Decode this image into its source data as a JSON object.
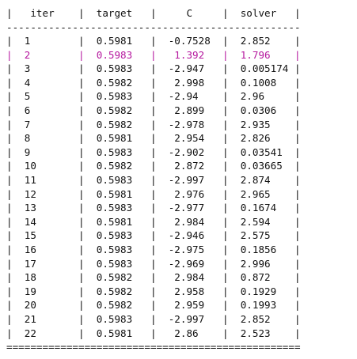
{
  "table": {
    "header": "|   iter    |  target   |     C     |  solver   |",
    "top_rule": "-------------------------------------------------",
    "bottom_rule": "=================================================",
    "highlight_color": "#b5179e",
    "rows": [
      {
        "text": "|  1        |  0.5981   |  -0.7528  |  2.852    |",
        "highlight": false
      },
      {
        "text": "|  2        |  0.5983   |   1.392   |  1.796    |",
        "highlight": true
      },
      {
        "text": "|  3        |  0.5983   |  -2.947   |  0.005174 |",
        "highlight": false
      },
      {
        "text": "|  4        |  0.5982   |   2.998   |  0.1008   |",
        "highlight": false
      },
      {
        "text": "|  5        |  0.5983   |  -2.94    |  2.96     |",
        "highlight": false
      },
      {
        "text": "|  6        |  0.5982   |   2.899   |  0.0306   |",
        "highlight": false
      },
      {
        "text": "|  7        |  0.5982   |  -2.978   |  2.935    |",
        "highlight": false
      },
      {
        "text": "|  8        |  0.5981   |   2.954   |  2.826    |",
        "highlight": false
      },
      {
        "text": "|  9        |  0.5983   |  -2.902   |  0.03541  |",
        "highlight": false
      },
      {
        "text": "|  10       |  0.5982   |   2.872   |  0.03665  |",
        "highlight": false
      },
      {
        "text": "|  11       |  0.5983   |  -2.997   |  2.874    |",
        "highlight": false
      },
      {
        "text": "|  12       |  0.5981   |   2.976   |  2.965    |",
        "highlight": false
      },
      {
        "text": "|  13       |  0.5983   |  -2.977   |  0.1674   |",
        "highlight": false
      },
      {
        "text": "|  14       |  0.5981   |   2.984   |  2.594    |",
        "highlight": false
      },
      {
        "text": "|  15       |  0.5983   |  -2.946   |  2.575    |",
        "highlight": false
      },
      {
        "text": "|  16       |  0.5983   |  -2.975   |  0.1856   |",
        "highlight": false
      },
      {
        "text": "|  17       |  0.5983   |  -2.969   |  2.996    |",
        "highlight": false
      },
      {
        "text": "|  18       |  0.5982   |   2.984   |  0.872    |",
        "highlight": false
      },
      {
        "text": "|  19       |  0.5982   |   2.958   |  0.1929   |",
        "highlight": false
      },
      {
        "text": "|  20       |  0.5982   |   2.959   |  0.1993   |",
        "highlight": false
      },
      {
        "text": "|  21       |  0.5983   |  -2.997   |  2.852    |",
        "highlight": false
      },
      {
        "text": "|  22       |  0.5981   |   2.86    |  2.523    |",
        "highlight": false
      }
    ]
  }
}
